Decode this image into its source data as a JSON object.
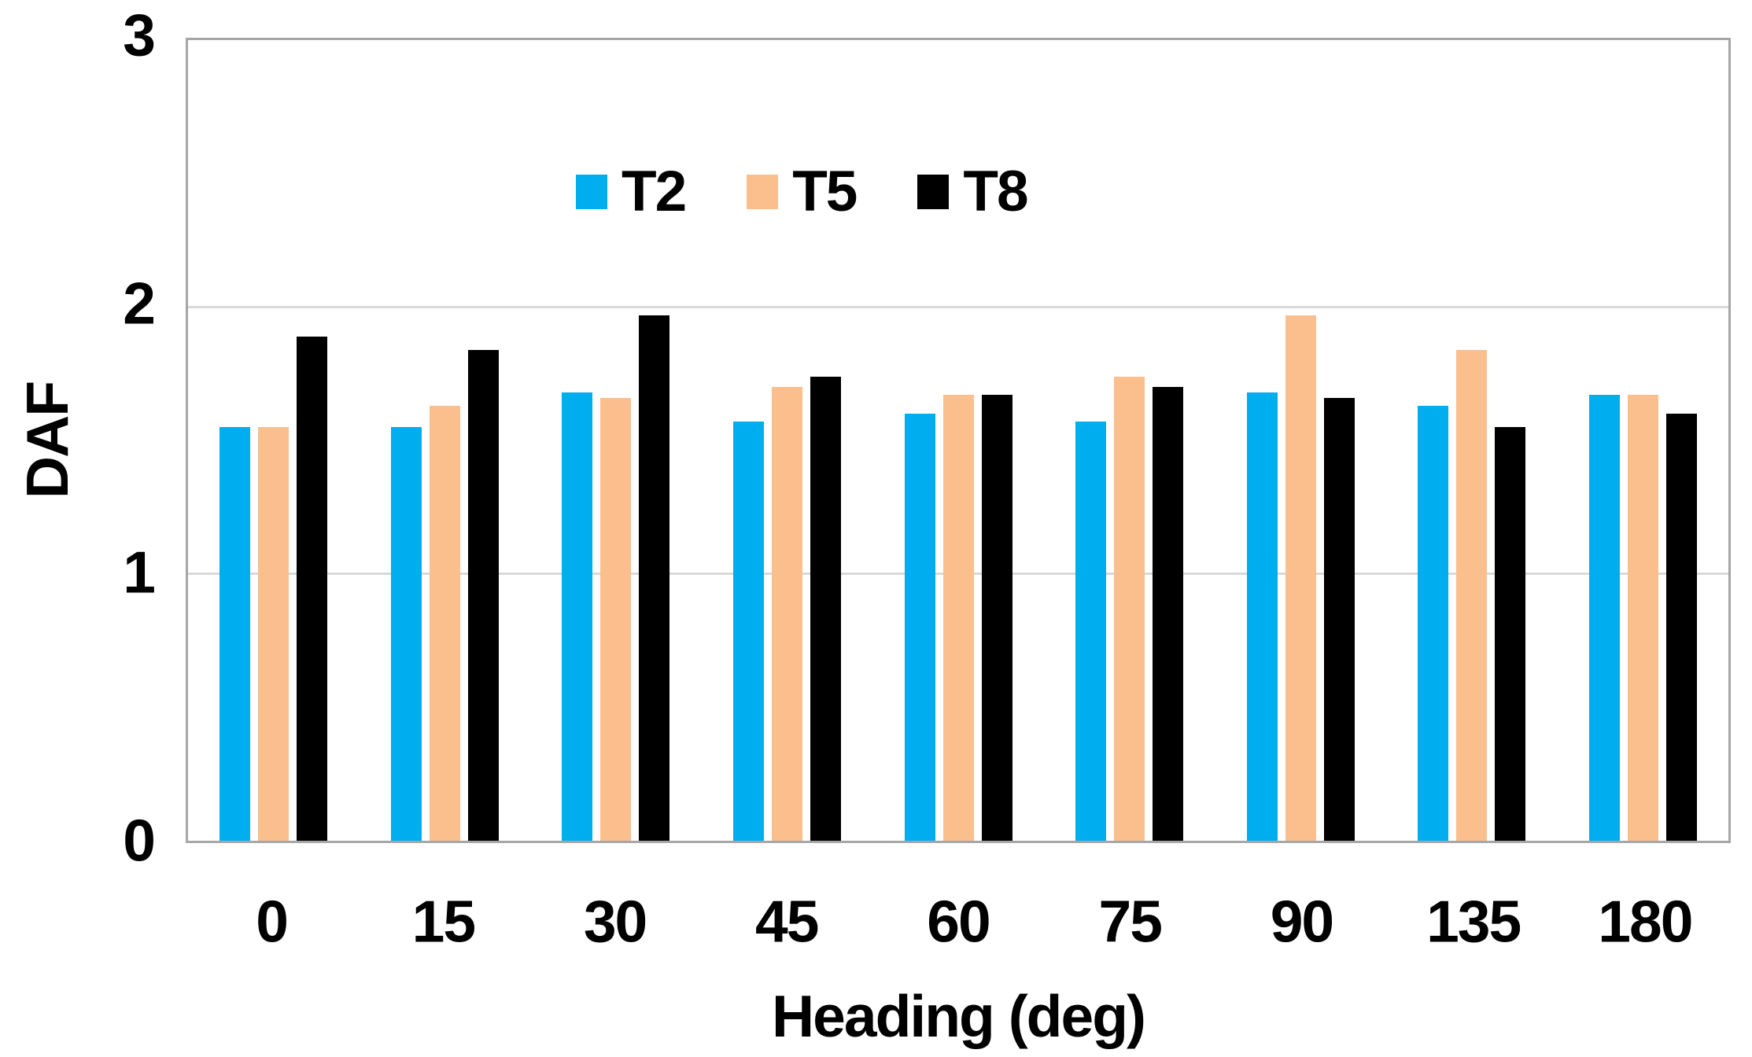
{
  "chart_data": {
    "type": "bar",
    "title": "",
    "xlabel": "Heading (deg)",
    "ylabel": "DAF",
    "categories": [
      "0",
      "15",
      "30",
      "45",
      "60",
      "75",
      "90",
      "135",
      "180"
    ],
    "series": [
      {
        "name": "T2",
        "color": "#00AEEF",
        "values": [
          1.55,
          1.55,
          1.68,
          1.57,
          1.6,
          1.57,
          1.68,
          1.63,
          1.67
        ]
      },
      {
        "name": "T5",
        "color": "#FBBE8D",
        "values": [
          1.55,
          1.63,
          1.66,
          1.7,
          1.67,
          1.74,
          1.97,
          1.84,
          1.67
        ]
      },
      {
        "name": "T8",
        "color": "#000000",
        "values": [
          1.89,
          1.84,
          1.97,
          1.74,
          1.67,
          1.7,
          1.66,
          1.55,
          1.6
        ]
      }
    ],
    "ylim": [
      0,
      3
    ],
    "yticks": [
      "0",
      "1",
      "2",
      "3"
    ],
    "grid": true,
    "gridline_values": [
      1,
      2
    ],
    "legend_position": "top-inside",
    "frame_color": "#A6A6A6",
    "gridline_color": "#D9D9D9"
  }
}
